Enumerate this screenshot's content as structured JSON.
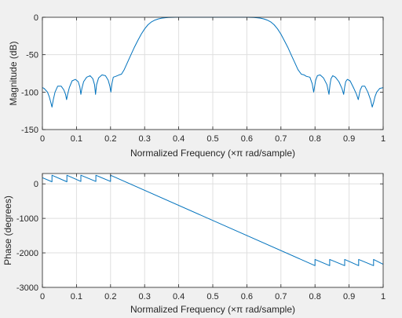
{
  "chart_data": [
    {
      "type": "line",
      "xlabel": "Normalized Frequency  (×π rad/sample)",
      "ylabel": "Magnitude (dB)",
      "xlim": [
        0,
        1
      ],
      "ylim": [
        -150,
        0
      ],
      "xticks": [
        0,
        0.1,
        0.2,
        0.3,
        0.4,
        0.5,
        0.6,
        0.7,
        0.8,
        0.9,
        1
      ],
      "xtick_labels": [
        "0",
        "0.1",
        "0.2",
        "0.3",
        "0.4",
        "0.5",
        "0.6",
        "0.7",
        "0.8",
        "0.9",
        "1"
      ],
      "yticks": [
        -150,
        -100,
        -50,
        0
      ],
      "ytick_labels": [
        "-150",
        "-100",
        "-50",
        "0"
      ],
      "grid": true,
      "line_color": "#0072bd",
      "series": [
        {
          "x": [
            0,
            0.005,
            0.015,
            0.02,
            0.025,
            0.028,
            0.032,
            0.037,
            0.045,
            0.055,
            0.063,
            0.068,
            0.071,
            0.074,
            0.079,
            0.087,
            0.097,
            0.105,
            0.11,
            0.113,
            0.116,
            0.121,
            0.13,
            0.14,
            0.148,
            0.153,
            0.156,
            0.159,
            0.165,
            0.175,
            0.185,
            0.193,
            0.198,
            0.201,
            0.204,
            0.208,
            0.215,
            0.225,
            0.232,
            0.24,
            0.25,
            0.26,
            0.27,
            0.28,
            0.29,
            0.3,
            0.31,
            0.32,
            0.33,
            0.34,
            0.35,
            0.36,
            0.37,
            0.38,
            0.39,
            0.4,
            0.42,
            0.45,
            0.5,
            0.55,
            0.58,
            0.6,
            0.61,
            0.62,
            0.63,
            0.64,
            0.65,
            0.66,
            0.67,
            0.68,
            0.69,
            0.7,
            0.71,
            0.72,
            0.73,
            0.74,
            0.75,
            0.76,
            0.768,
            0.775,
            0.785,
            0.792,
            0.796,
            0.799,
            0.802,
            0.807,
            0.815,
            0.825,
            0.835,
            0.841,
            0.844,
            0.847,
            0.852,
            0.86,
            0.87,
            0.879,
            0.884,
            0.887,
            0.89,
            0.895,
            0.903,
            0.913,
            0.922,
            0.927,
            0.93,
            0.933,
            0.938,
            0.946,
            0.955,
            0.963,
            0.968,
            0.972,
            0.976,
            0.981,
            0.99,
            1
          ],
          "y": [
            -94,
            -95,
            -100,
            -106,
            -114,
            -120,
            -110,
            -100,
            -92,
            -92,
            -97,
            -103,
            -110,
            -103,
            -94,
            -85,
            -83,
            -86,
            -93,
            -103,
            -95,
            -86,
            -80,
            -78,
            -82,
            -90,
            -103,
            -90,
            -81,
            -77,
            -78,
            -84,
            -92,
            -100,
            -89,
            -80,
            -79,
            -77,
            -76,
            -70,
            -60,
            -50,
            -40,
            -31,
            -22.5,
            -15.5,
            -10,
            -6.2,
            -3.8,
            -2.2,
            -1.2,
            -0.6,
            -0.3,
            -0.12,
            -0.05,
            -0.02,
            0,
            0,
            0,
            0,
            -0.02,
            -0.05,
            -0.12,
            -0.3,
            -0.6,
            -1.2,
            -2.2,
            -3.8,
            -6.2,
            -10,
            -15.5,
            -22.5,
            -31,
            -40,
            -50,
            -60,
            -70,
            -76,
            -77,
            -79,
            -80,
            -89,
            -100,
            -92,
            -84,
            -78,
            -77,
            -81,
            -90,
            -103,
            -90,
            -82,
            -78,
            -80,
            -86,
            -95,
            -103,
            -93,
            -86,
            -83,
            -85,
            -94,
            -103,
            -110,
            -103,
            -97,
            -92,
            -92,
            -100,
            -110,
            -120,
            -114,
            -106,
            -100,
            -95,
            -94
          ]
        }
      ]
    },
    {
      "type": "line",
      "xlabel": "Normalized Frequency  (×π rad/sample)",
      "ylabel": "Phase (degrees)",
      "xlim": [
        0,
        1
      ],
      "ylim": [
        -3000,
        300
      ],
      "xticks": [
        0,
        0.1,
        0.2,
        0.3,
        0.4,
        0.5,
        0.6,
        0.7,
        0.8,
        0.9,
        1
      ],
      "xtick_labels": [
        "0",
        "0.1",
        "0.2",
        "0.3",
        "0.4",
        "0.5",
        "0.6",
        "0.7",
        "0.8",
        "0.9",
        "1"
      ],
      "yticks": [
        -3000,
        -2000,
        -1000,
        0
      ],
      "ytick_labels": [
        "-3000",
        "-2000",
        "-1000",
        "0"
      ],
      "grid": true,
      "line_color": "#0072bd",
      "series": [
        {
          "x": [
            0,
            0.028,
            0.028,
            0.072,
            0.072,
            0.113,
            0.113,
            0.157,
            0.157,
            0.2,
            0.2,
            0.8,
            0.8,
            0.843,
            0.843,
            0.887,
            0.887,
            0.928,
            0.928,
            0.972,
            0.972,
            1
          ],
          "y": [
            180,
            60,
            250,
            60,
            250,
            70,
            250,
            70,
            250,
            70,
            250,
            -2370,
            -2190,
            -2370,
            -2190,
            -2370,
            -2190,
            -2370,
            -2190,
            -2370,
            -2190,
            -2330
          ]
        }
      ]
    }
  ]
}
